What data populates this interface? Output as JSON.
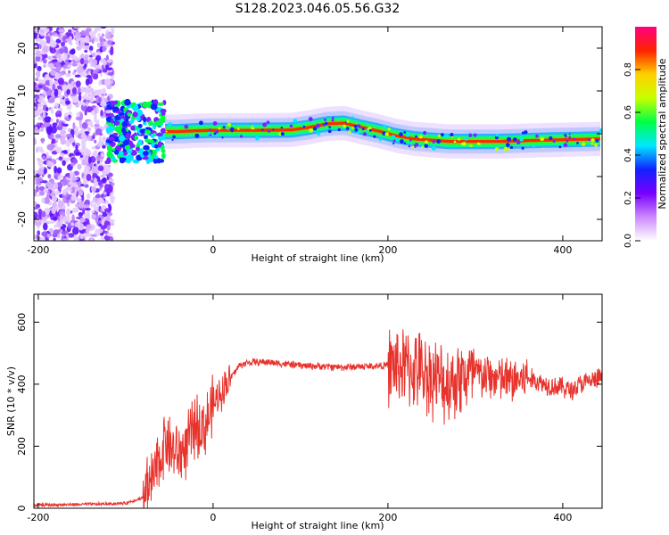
{
  "title": "S128.2023.046.05.56.G32",
  "chart_data": [
    {
      "type": "heatmap",
      "xlabel": "Height of straight line (km)",
      "ylabel": "Frequency (Hz)",
      "xlim": [
        -205,
        445
      ],
      "ylim": [
        -25,
        25
      ],
      "xticks": [
        -200,
        0,
        200,
        400
      ],
      "yticks": [
        -20,
        -10,
        0,
        10,
        20
      ],
      "ridge": {
        "x": [
          -55,
          -40,
          -20,
          0,
          50,
          90,
          110,
          130,
          150,
          170,
          190,
          210,
          230,
          250,
          270,
          300,
          330,
          360,
          400,
          445
        ],
        "y": [
          0.5,
          0.5,
          0.7,
          0.8,
          0.8,
          0.9,
          1.5,
          2.3,
          2.5,
          1.5,
          0.6,
          -0.5,
          -1.2,
          -1.5,
          -1.8,
          -1.8,
          -1.8,
          -1.6,
          -1.4,
          -1.2
        ]
      },
      "noise_region_x": [
        -205,
        -115
      ],
      "colorbar": {
        "label": "Normalized spectral amplitude",
        "range": [
          0,
          1
        ],
        "ticks": [
          "0.0",
          "0.2",
          "0.4",
          "0.6",
          "0.8"
        ],
        "colors": [
          "#ffffff",
          "#cc88ff",
          "#7700ff",
          "#1122ff",
          "#00e8ff",
          "#00ff44",
          "#c8ff00",
          "#ffd000",
          "#ff2200",
          "#ff0080"
        ]
      }
    },
    {
      "type": "line",
      "xlabel": "Height of straight line (km)",
      "ylabel": "SNR (10 * v/v)",
      "xlim": [
        -205,
        445
      ],
      "ylim": [
        0,
        690
      ],
      "xticks": [
        -200,
        0,
        200,
        400
      ],
      "yticks": [
        0,
        200,
        400,
        600
      ],
      "line_color": "#e8322c",
      "series": [
        {
          "x": [
            -205,
            -160,
            -120,
            -100,
            -80,
            -70,
            -60,
            -55,
            -50,
            -40,
            -30,
            -20,
            -10,
            0,
            10,
            20,
            30,
            40,
            60,
            100,
            150,
            200,
            220,
            240,
            260,
            265,
            280,
            300,
            320,
            340,
            360,
            380,
            400,
            410,
            420,
            445
          ],
          "y": [
            10,
            12,
            14,
            16,
            35,
            80,
            160,
            230,
            200,
            170,
            200,
            270,
            260,
            330,
            380,
            420,
            460,
            470,
            472,
            460,
            455,
            460,
            455,
            440,
            410,
            400,
            420,
            430,
            420,
            410,
            420,
            400,
            390,
            380,
            400,
            420
          ]
        }
      ]
    }
  ]
}
